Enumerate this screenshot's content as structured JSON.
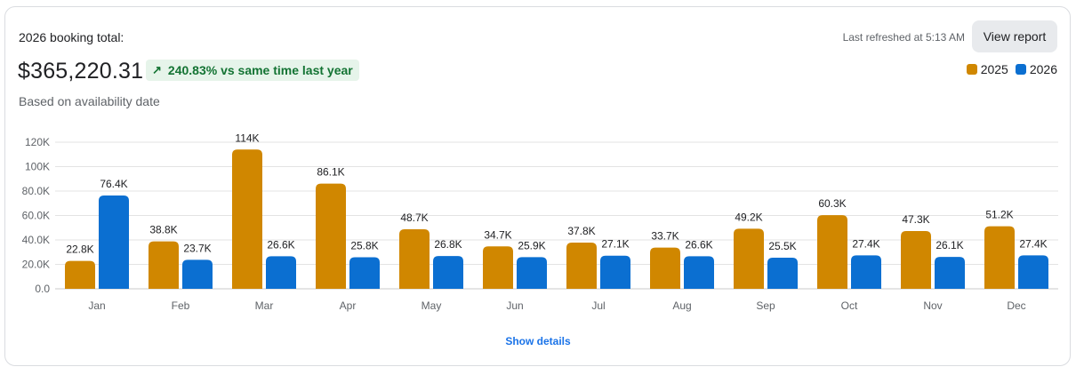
{
  "header": {
    "title": "2026 booking total:",
    "amount": "$365,220.31",
    "change_badge": "240.83% vs same time last year",
    "change_icon": "arrow-up-right-icon",
    "subtitle": "Based on availability date",
    "last_refreshed": "Last refreshed at 5:13 AM",
    "view_report_label": "View report"
  },
  "legend": [
    {
      "label": "2025",
      "color": "#d08700"
    },
    {
      "label": "2026",
      "color": "#0b6fd1"
    }
  ],
  "footer": {
    "show_details_label": "Show details"
  },
  "colors": {
    "accent_link": "#1a73e8",
    "badge_bg": "#e6f4ea",
    "badge_text": "#137333"
  },
  "chart_data": {
    "type": "bar",
    "title": "2026 booking total",
    "xlabel": "",
    "ylabel": "",
    "categories": [
      "Jan",
      "Feb",
      "Mar",
      "Apr",
      "May",
      "Jun",
      "Jul",
      "Aug",
      "Sep",
      "Oct",
      "Nov",
      "Dec"
    ],
    "series": [
      {
        "name": "2025",
        "color": "#d08700",
        "values": [
          22800,
          38800,
          114000,
          86100,
          48700,
          34700,
          37800,
          33700,
          49200,
          60300,
          47300,
          51200
        ],
        "labels": [
          "22.8K",
          "38.8K",
          "114K",
          "86.1K",
          "48.7K",
          "34.7K",
          "37.8K",
          "33.7K",
          "49.2K",
          "60.3K",
          "47.3K",
          "51.2K"
        ]
      },
      {
        "name": "2026",
        "color": "#0b6fd1",
        "values": [
          76400,
          23700,
          26600,
          25800,
          26800,
          25900,
          27100,
          26600,
          25500,
          27400,
          26100,
          27400
        ],
        "labels": [
          "76.4K",
          "23.7K",
          "26.6K",
          "25.8K",
          "26.8K",
          "25.9K",
          "27.1K",
          "26.6K",
          "25.5K",
          "27.4K",
          "26.1K",
          "27.4K"
        ]
      }
    ],
    "yticks": [
      0,
      20000,
      40000,
      60000,
      80000,
      100000,
      120000
    ],
    "ytick_labels": [
      "0.0",
      "20.0K",
      "40.0K",
      "60.0K",
      "80.0K",
      "100K",
      "120K"
    ],
    "ylim": [
      0,
      120000
    ],
    "grid": true,
    "legend_position": "top-right"
  }
}
